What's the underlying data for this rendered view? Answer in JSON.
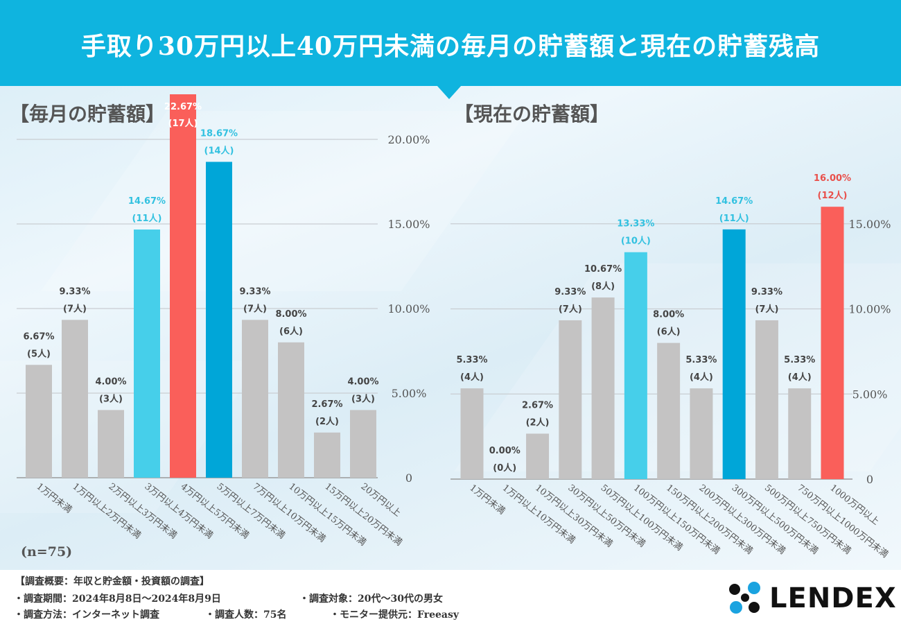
{
  "page": {
    "title": "手取り30万円以上40万円未満の毎月の貯蓄額と現在の貯蓄残高"
  },
  "colors": {
    "header": "#0fb4df",
    "gray": "#c4c3c3",
    "light_blue": "#46cfea",
    "blue": "#00a6d8",
    "red": "#fa5f5a"
  },
  "chart_data": [
    {
      "type": "bar",
      "title": "【毎月の貯蓄額】",
      "categories": [
        "1万円未満",
        "1万円以上2万円未満",
        "2万円以上3万円未満",
        "3万円以上4万円未満",
        "4万円以上5万円未満",
        "5万円以上7万円未満",
        "7万円以上10万円未満",
        "10万円以上15万円未満",
        "15万円以上20万円未満",
        "20万円以上"
      ],
      "values": [
        6.67,
        9.33,
        4.0,
        14.67,
        22.67,
        18.67,
        9.33,
        8.0,
        2.67,
        4.0
      ],
      "value_labels": [
        "6.67%",
        "9.33%",
        "4.00%",
        "14.67%",
        "22.67%",
        "18.67%",
        "9.33%",
        "8.00%",
        "2.67%",
        "4.00%"
      ],
      "counts": [
        "(5人)",
        "(7人)",
        "(3人)",
        "(11人)",
        "(17人)",
        "(14人)",
        "(7人)",
        "(6人)",
        "(2人)",
        "(3人)"
      ],
      "bar_colors": [
        "gray",
        "gray",
        "gray",
        "light_blue",
        "red",
        "blue",
        "gray",
        "gray",
        "gray",
        "gray"
      ],
      "ylim": [
        0,
        22.67
      ],
      "yticks": [
        0,
        5,
        10,
        15,
        20
      ],
      "ytick_labels": [
        "0",
        "5.00%",
        "10.00%",
        "15.00%",
        "20.00%"
      ],
      "grid": true,
      "axis_side": "right"
    },
    {
      "type": "bar",
      "title": "【現在の貯蓄額】",
      "categories": [
        "1万円未満",
        "1万円以上10万円未満",
        "10万円以上30万円未満",
        "30万円以上50万円未満",
        "50万円以上100万円未満",
        "100万円以上150万円未満",
        "150万円以上200万円未満",
        "200万円以上300万円未満",
        "300万円以上500万円未満",
        "500万円以上750万円未満",
        "750万円以上1000万円未満",
        "1000万円以上"
      ],
      "values": [
        5.33,
        0.0,
        2.67,
        9.33,
        10.67,
        13.33,
        8.0,
        5.33,
        14.67,
        9.33,
        5.33,
        16.0
      ],
      "value_labels": [
        "5.33%",
        "0.00%",
        "2.67%",
        "9.33%",
        "10.67%",
        "13.33%",
        "8.00%",
        "5.33%",
        "14.67%",
        "9.33%",
        "5.33%",
        "16.00%"
      ],
      "counts": [
        "(4人)",
        "(0人)",
        "(2人)",
        "(7人)",
        "(8人)",
        "(10人)",
        "(6人)",
        "(4人)",
        "(11人)",
        "(7人)",
        "(4人)",
        "(12人)"
      ],
      "bar_colors": [
        "gray",
        "gray",
        "gray",
        "gray",
        "gray",
        "light_blue",
        "gray",
        "gray",
        "blue",
        "gray",
        "gray",
        "red"
      ],
      "ylim": [
        0,
        20
      ],
      "yticks": [
        0,
        5,
        10,
        15
      ],
      "ytick_labels": [
        "0",
        "5.00%",
        "10.00%",
        "15.00%"
      ],
      "grid": true,
      "axis_side": "right"
    }
  ],
  "sample_size": "(n=75)",
  "footer": {
    "summary": "【調査概要：年収と貯金額・投資額の調査】",
    "period": "・調査期間：2024年8月8日〜2024年8月9日",
    "target": "・調査対象：20代〜30代の男女",
    "method": "・調査方法：インターネット調査",
    "count": "・調査人数：75名",
    "provider": "・モニター提供元：Freeasy"
  },
  "logo": {
    "text": "LENDEX",
    "icon": "clover-dots-icon"
  }
}
